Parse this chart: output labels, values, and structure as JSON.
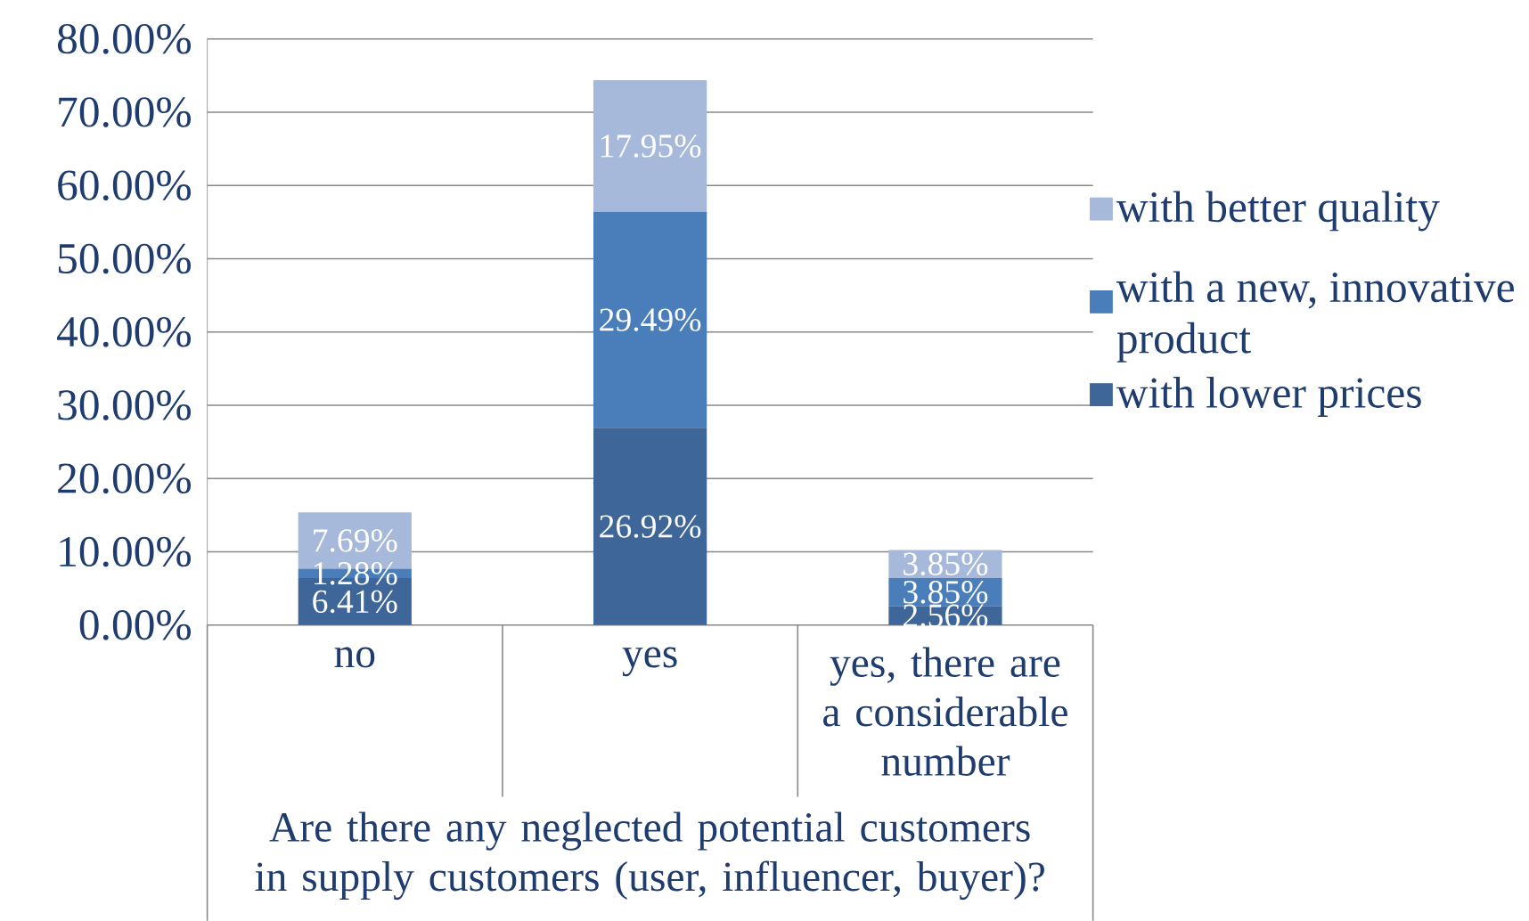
{
  "chart_data": {
    "type": "bar",
    "stacked": true,
    "categories": [
      "no",
      "yes",
      "yes, there are a considerable number"
    ],
    "xlabel": "Are there any neglected potential customers in supply customers (user, influencer, buyer)?",
    "series": [
      {
        "name": "with lower prices",
        "color": "#3f6698",
        "values": [
          6.41,
          26.92,
          2.56
        ],
        "value_labels": [
          "6.41%",
          "26.92%",
          "2.56%"
        ]
      },
      {
        "name": "with a new, innovative product",
        "color": "#4a7ebb",
        "values": [
          1.28,
          29.49,
          3.85
        ],
        "value_labels": [
          "1.28%",
          "29.49%",
          "3.85%"
        ]
      },
      {
        "name": "with better quality",
        "color": "#a7b9da",
        "values": [
          7.69,
          17.95,
          3.85
        ],
        "value_labels": [
          "7.69%",
          "17.95%",
          "3.85%"
        ]
      }
    ],
    "ylim": [
      0,
      80
    ],
    "yticks": [
      {
        "value": 0,
        "label": "0.00%"
      },
      {
        "value": 10,
        "label": "10.00%"
      },
      {
        "value": 20,
        "label": "20.00%"
      },
      {
        "value": 30,
        "label": "30.00%"
      },
      {
        "value": 40,
        "label": "40.00%"
      },
      {
        "value": 50,
        "label": "50.00%"
      },
      {
        "value": 60,
        "label": "60.00%"
      },
      {
        "value": 70,
        "label": "70.00%"
      },
      {
        "value": 80,
        "label": "80.00%"
      }
    ],
    "grid": "y",
    "legend": "right"
  }
}
